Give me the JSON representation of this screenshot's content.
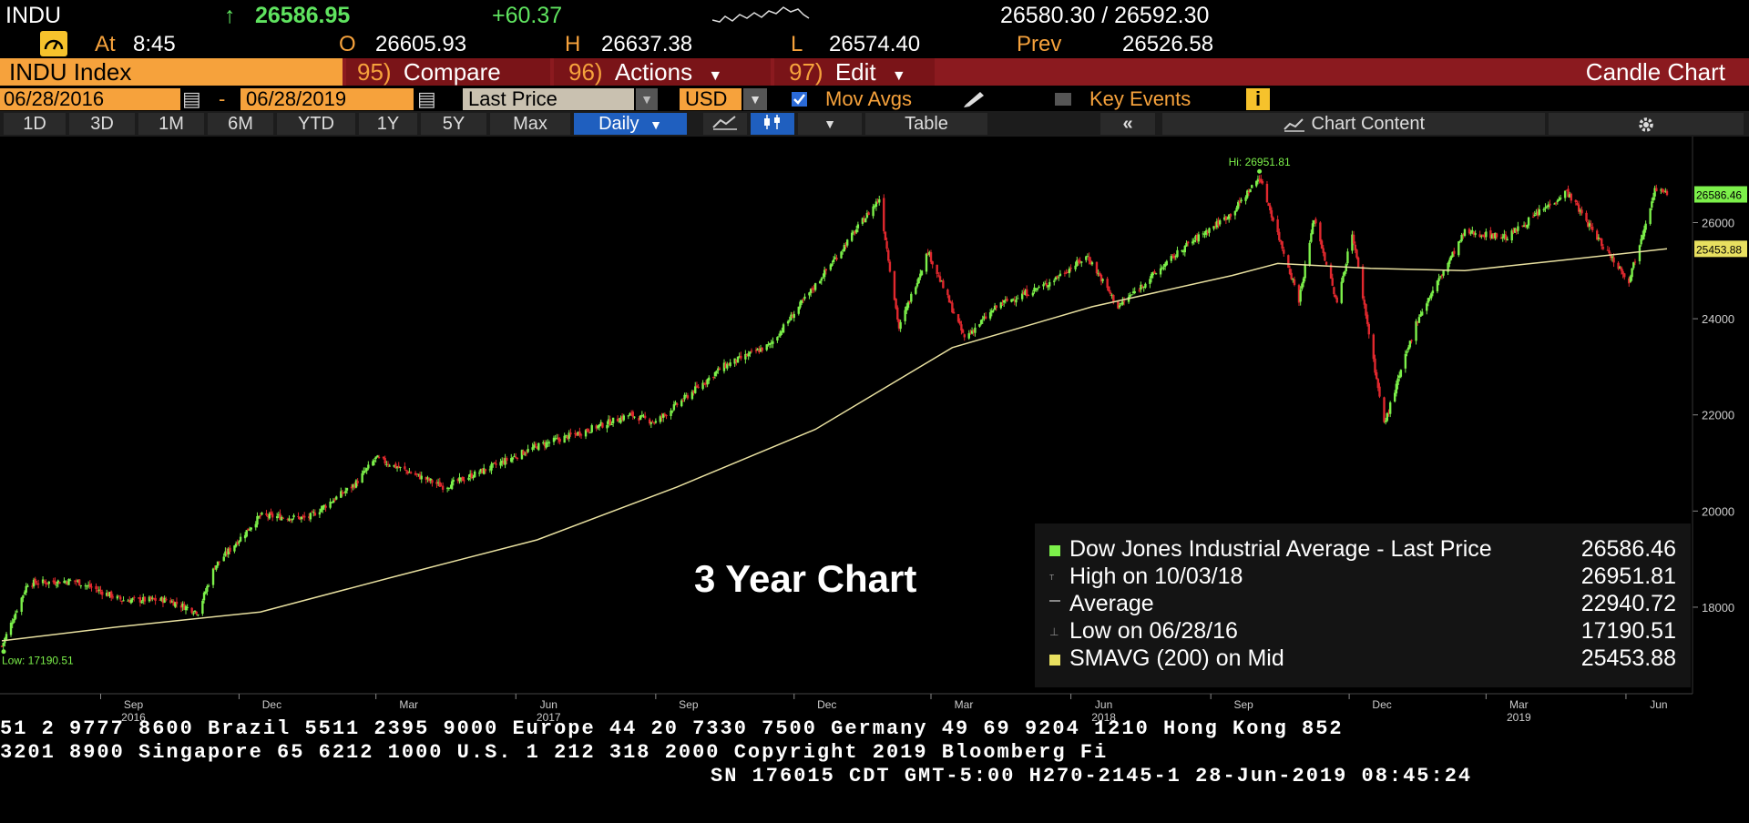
{
  "header": {
    "ticker": "INDU",
    "last_arrow": "↑",
    "last": "26586.95",
    "change": "+60.37",
    "bid_ask": "26580.30 / 26592.30",
    "time_label": "At",
    "time": "8:45",
    "open_label": "O",
    "open": "26605.93",
    "high_label": "H",
    "high": "26637.38",
    "low_label": "L",
    "low": "26574.40",
    "prev_label": "Prev",
    "prev": "26526.58"
  },
  "menu": {
    "security": "INDU Index",
    "compare_num": "95)",
    "compare": "Compare",
    "actions_num": "96)",
    "actions": "Actions",
    "edit_num": "97)",
    "edit": "Edit",
    "chart_type": "Candle Chart"
  },
  "settings": {
    "start_date": "06/28/2016",
    "dash": "-",
    "end_date": "06/28/2019",
    "field": "Last Price",
    "currency": "USD",
    "mov_avgs": "Mov Avgs",
    "key_events": "Key Events"
  },
  "periods": [
    "1D",
    "3D",
    "1M",
    "6M",
    "YTD",
    "1Y",
    "5Y",
    "Max"
  ],
  "frequency": "Daily",
  "table_label": "Table",
  "chart_content_label": "Chart Content",
  "colors": {
    "up": "#7cf04a",
    "down": "#e0282e",
    "sma": "#e8e0a0",
    "accent": "#f6a23c",
    "menu_bar": "#8b1a1f"
  },
  "chart_data": {
    "type": "candlestick",
    "x_ticks": [
      {
        "label": "Sep",
        "year": "2016",
        "date": "2016-09-01"
      },
      {
        "label": "Dec",
        "date": "2016-12-01"
      },
      {
        "label": "Mar",
        "date": "2017-03-01"
      },
      {
        "label": "Jun",
        "year": "2017",
        "date": "2017-06-01"
      },
      {
        "label": "Sep",
        "date": "2017-09-01"
      },
      {
        "label": "Dec",
        "date": "2017-12-01"
      },
      {
        "label": "Mar",
        "date": "2018-03-01"
      },
      {
        "label": "Jun",
        "year": "2018",
        "date": "2018-06-01"
      },
      {
        "label": "Sep",
        "date": "2018-09-01"
      },
      {
        "label": "Dec",
        "date": "2018-12-01"
      },
      {
        "label": "Mar",
        "year": "2019",
        "date": "2019-03-01"
      },
      {
        "label": "Jun",
        "date": "2019-06-01"
      }
    ],
    "y_ticks": [
      18000,
      20000,
      22000,
      24000,
      26000
    ],
    "ylim": [
      16200,
      27600
    ],
    "x_range": [
      "2016-06-28",
      "2019-06-28"
    ],
    "price_path": [
      {
        "date": "2016-06-28",
        "value": 17190
      },
      {
        "date": "2016-07-15",
        "value": 18500
      },
      {
        "date": "2016-08-15",
        "value": 18550
      },
      {
        "date": "2016-09-15",
        "value": 18150
      },
      {
        "date": "2016-10-15",
        "value": 18150
      },
      {
        "date": "2016-11-04",
        "value": 17900
      },
      {
        "date": "2016-11-15",
        "value": 18850
      },
      {
        "date": "2016-12-15",
        "value": 19900
      },
      {
        "date": "2017-01-15",
        "value": 19850
      },
      {
        "date": "2017-02-15",
        "value": 20550
      },
      {
        "date": "2017-03-01",
        "value": 21100
      },
      {
        "date": "2017-04-15",
        "value": 20500
      },
      {
        "date": "2017-05-15",
        "value": 20900
      },
      {
        "date": "2017-06-15",
        "value": 21350
      },
      {
        "date": "2017-07-15",
        "value": 21650
      },
      {
        "date": "2017-08-15",
        "value": 22000
      },
      {
        "date": "2017-09-01",
        "value": 21850
      },
      {
        "date": "2017-10-15",
        "value": 23000
      },
      {
        "date": "2017-11-15",
        "value": 23450
      },
      {
        "date": "2017-12-15",
        "value": 24700
      },
      {
        "date": "2018-01-26",
        "value": 26500
      },
      {
        "date": "2018-02-08",
        "value": 23800
      },
      {
        "date": "2018-02-27",
        "value": 25400
      },
      {
        "date": "2018-03-23",
        "value": 23600
      },
      {
        "date": "2018-04-15",
        "value": 24300
      },
      {
        "date": "2018-05-15",
        "value": 24700
      },
      {
        "date": "2018-06-12",
        "value": 25300
      },
      {
        "date": "2018-07-02",
        "value": 24250
      },
      {
        "date": "2018-08-15",
        "value": 25500
      },
      {
        "date": "2018-09-15",
        "value": 26200
      },
      {
        "date": "2018-10-03",
        "value": 26951
      },
      {
        "date": "2018-10-29",
        "value": 24400
      },
      {
        "date": "2018-11-08",
        "value": 26100
      },
      {
        "date": "2018-11-23",
        "value": 24300
      },
      {
        "date": "2018-12-03",
        "value": 25800
      },
      {
        "date": "2018-12-24",
        "value": 21800
      },
      {
        "date": "2019-01-15",
        "value": 24000
      },
      {
        "date": "2019-02-15",
        "value": 25800
      },
      {
        "date": "2019-03-15",
        "value": 25700
      },
      {
        "date": "2019-04-23",
        "value": 26650
      },
      {
        "date": "2019-05-15",
        "value": 25600
      },
      {
        "date": "2019-06-03",
        "value": 24800
      },
      {
        "date": "2019-06-20",
        "value": 26700
      },
      {
        "date": "2019-06-28",
        "value": 26586
      }
    ],
    "sma_path": [
      {
        "date": "2016-06-28",
        "value": 17300
      },
      {
        "date": "2016-09-15",
        "value": 17600
      },
      {
        "date": "2016-12-15",
        "value": 17900
      },
      {
        "date": "2017-03-15",
        "value": 18650
      },
      {
        "date": "2017-06-15",
        "value": 19400
      },
      {
        "date": "2017-09-15",
        "value": 20500
      },
      {
        "date": "2017-12-15",
        "value": 21700
      },
      {
        "date": "2018-03-15",
        "value": 23400
      },
      {
        "date": "2018-06-15",
        "value": 24250
      },
      {
        "date": "2018-09-15",
        "value": 24900
      },
      {
        "date": "2018-10-15",
        "value": 25150
      },
      {
        "date": "2018-12-15",
        "value": 25050
      },
      {
        "date": "2019-02-15",
        "value": 25000
      },
      {
        "date": "2019-04-15",
        "value": 25200
      },
      {
        "date": "2019-06-28",
        "value": 25454
      }
    ],
    "hi_annotation": {
      "label": "Hi: 26951.81",
      "date": "2018-10-03",
      "value": 26951.81
    },
    "low_annotation": {
      "label": "Low: 17190.51",
      "date": "2016-06-28",
      "value": 17190.51
    },
    "last_tag": "26586.46",
    "sma_tag": "25453.88",
    "caption": "3 Year Chart",
    "legend": [
      {
        "label": "Dow Jones Industrial Average - Last Price",
        "value": "26586.46",
        "marker": "#7cf04a"
      },
      {
        "label": "High on 10/03/18",
        "value": "26951.81",
        "marker": "none"
      },
      {
        "label": "Average",
        "value": "22940.72",
        "marker": "none"
      },
      {
        "label": "Low on 06/28/16",
        "value": "17190.51",
        "marker": "none"
      },
      {
        "label": "SMAVG (200)  on Mid",
        "value": "25453.88",
        "marker": "#e8e060"
      }
    ]
  },
  "footer": {
    "line1": "51 2 9777 8600 Brazil 5511 2395 9000 Europe 44 20 7330 7500 Germany 49 69 9204 1210 Hong Kong 852",
    "line2": " 3201 8900          Singapore 65 6212 1000        U.S. 1 212 318 2000          Copyright 2019 Bloomberg Fi",
    "line3": "SN 176015 CDT  GMT-5:00 H270-2145-1 28-Jun-2019 08:45:24"
  }
}
